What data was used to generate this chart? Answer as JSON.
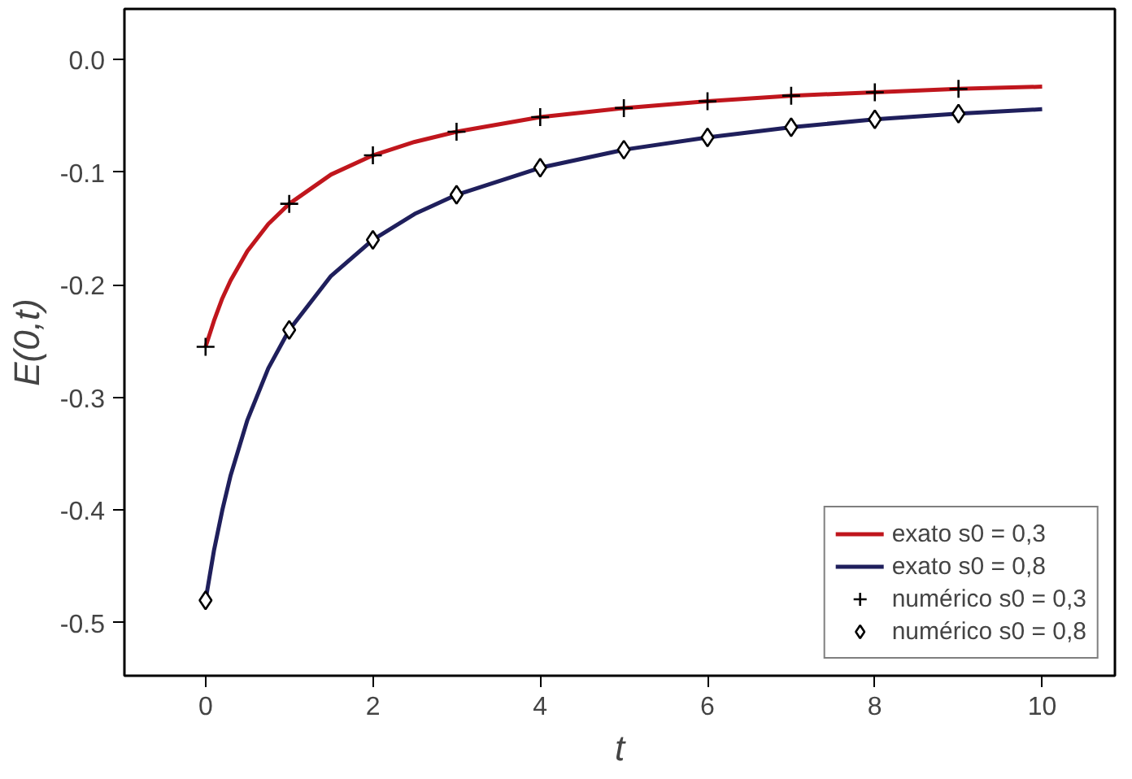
{
  "chart_data": {
    "type": "line",
    "xlabel": "t",
    "ylabel": "E(0,t)",
    "xlim": [
      -0.97,
      10.87
    ],
    "ylim": [
      -0.547,
      0.045
    ],
    "xticks": [
      0,
      2,
      4,
      6,
      8,
      10
    ],
    "yticks": [
      {
        "value": 0,
        "label": "0.0"
      },
      -0.1,
      -0.2,
      -0.3,
      -0.4,
      -0.5
    ],
    "grid": false,
    "legend": "bottom right",
    "series": [
      {
        "name": "exato s0 = 0,3",
        "color": "#c0161d",
        "marker": "none",
        "x": [
          0,
          0.1,
          0.2,
          0.3,
          0.5,
          0.75,
          1,
          1.5,
          2,
          2.5,
          3,
          4,
          5,
          6,
          7,
          8,
          9,
          10
        ],
        "values": [
          -0.255,
          -0.232,
          -0.212,
          -0.196,
          -0.17,
          -0.146,
          -0.128,
          -0.102,
          -0.085,
          -0.073,
          -0.064,
          -0.051,
          -0.043,
          -0.037,
          -0.032,
          -0.029,
          -0.026,
          -0.024
        ]
      },
      {
        "name": "exato s0 = 0,8",
        "color": "#1f1f5c",
        "marker": "none",
        "x": [
          0,
          0.1,
          0.2,
          0.3,
          0.5,
          0.75,
          1,
          1.5,
          2,
          2.5,
          3,
          4,
          5,
          6,
          7,
          8,
          9,
          10
        ],
        "values": [
          -0.48,
          -0.436,
          -0.4,
          -0.369,
          -0.32,
          -0.274,
          -0.24,
          -0.192,
          -0.16,
          -0.137,
          -0.12,
          -0.096,
          -0.08,
          -0.069,
          -0.06,
          -0.053,
          -0.048,
          -0.044
        ]
      },
      {
        "name": "numérico s0 = 0,3",
        "color": "#000000",
        "type": "scatter",
        "marker": "cross",
        "x": [
          0,
          1,
          2,
          3,
          4,
          5,
          6,
          7,
          8,
          9
        ],
        "values": [
          -0.255,
          -0.128,
          -0.085,
          -0.064,
          -0.051,
          -0.043,
          -0.037,
          -0.032,
          -0.029,
          -0.026
        ]
      },
      {
        "name": "numérico s0 = 0,8",
        "color": "#000000",
        "type": "scatter",
        "marker": "diamond",
        "x": [
          0,
          1,
          2,
          3,
          4,
          5,
          6,
          7,
          8,
          9
        ],
        "values": [
          -0.48,
          -0.24,
          -0.16,
          -0.12,
          -0.096,
          -0.08,
          -0.069,
          -0.06,
          -0.053,
          -0.048
        ]
      }
    ]
  }
}
